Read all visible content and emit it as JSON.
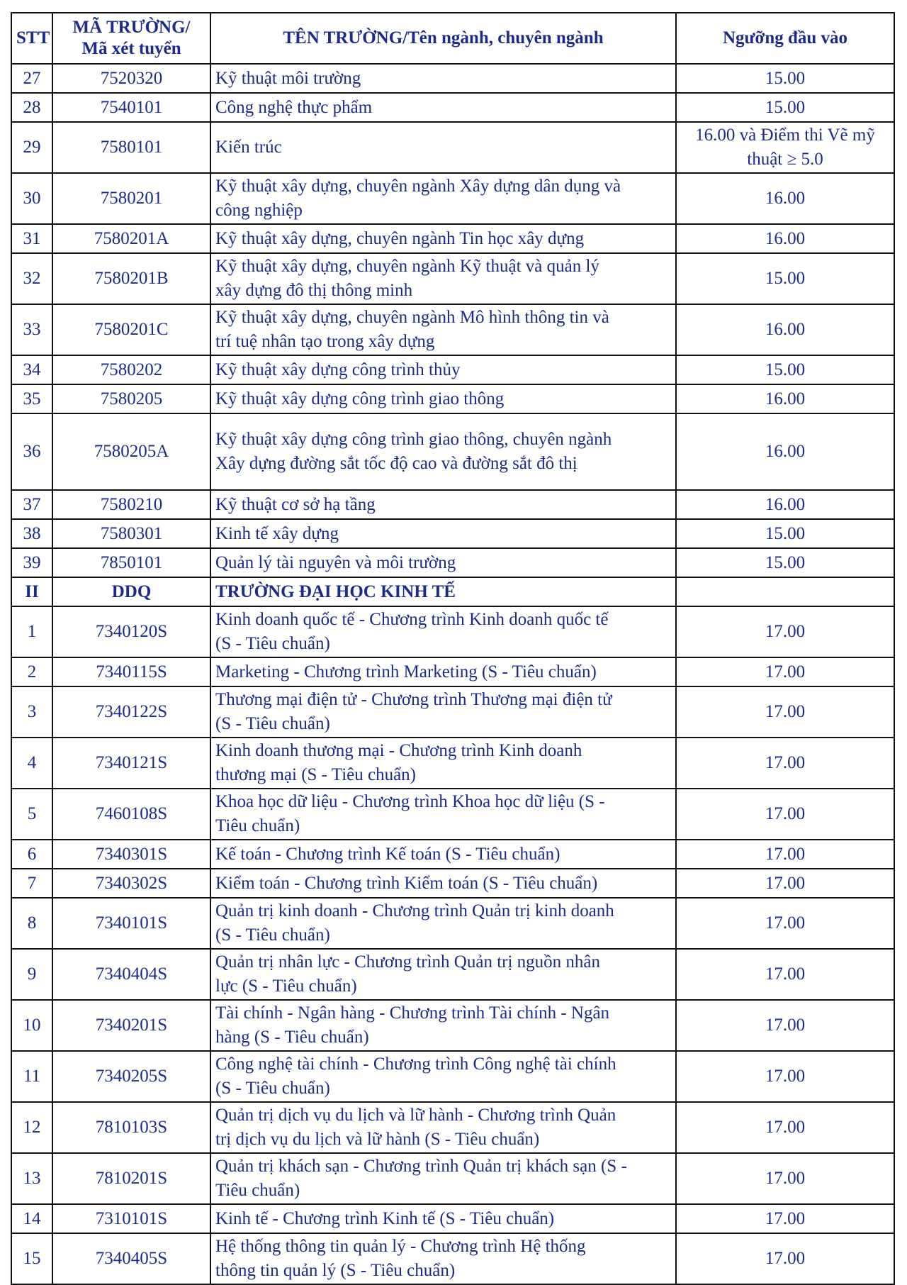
{
  "table": {
    "headers": [
      "STT",
      "MÃ TRƯỜNG/\nMã xét tuyển",
      "TÊN TRƯỜNG/Tên ngành, chuyên ngành",
      "Ngưỡng đầu vào"
    ],
    "rows": [
      {
        "stt": "27",
        "code": "7520320",
        "name": "Kỹ thuật môi trường",
        "threshold": "15.00"
      },
      {
        "stt": "28",
        "code": "7540101",
        "name": "Công nghệ thực phẩm",
        "threshold": "15.00"
      },
      {
        "stt": "29",
        "code": "7580101",
        "name": "Kiến trúc",
        "threshold": "16.00 và Điểm thi Vẽ mỹ\nthuật ≥ 5.0"
      },
      {
        "stt": "30",
        "code": "7580201",
        "name": "Kỹ thuật xây dựng, chuyên ngành Xây dựng dân dụng và\ncông nghiệp",
        "threshold": "16.00"
      },
      {
        "stt": "31",
        "code": "7580201A",
        "name": "Kỹ thuật xây dựng, chuyên ngành Tin học xây dựng",
        "threshold": "16.00"
      },
      {
        "stt": "32",
        "code": "7580201B",
        "name": "Kỹ thuật xây dựng, chuyên ngành Kỹ thuật và quản lý\nxây dựng đô thị thông minh",
        "threshold": "15.00"
      },
      {
        "stt": "33",
        "code": "7580201C",
        "name": "Kỹ thuật xây dựng, chuyên ngành Mô hình thông tin và\ntrí tuệ nhân tạo trong xây dựng",
        "threshold": "16.00"
      },
      {
        "stt": "34",
        "code": "7580202",
        "name": "Kỹ thuật xây dựng công trình thủy",
        "threshold": "15.00"
      },
      {
        "stt": "35",
        "code": "7580205",
        "name": "Kỹ thuật xây dựng công trình giao thông",
        "threshold": "16.00"
      },
      {
        "stt": "36",
        "code": "7580205A",
        "name": "Kỹ thuật xây dựng công trình giao thông, chuyên ngành\nXây dựng đường sắt tốc độ cao và đường sắt đô thị",
        "threshold": "16.00",
        "tall": true
      },
      {
        "stt": "37",
        "code": "7580210",
        "name": "Kỹ thuật cơ sở hạ tầng",
        "threshold": "16.00"
      },
      {
        "stt": "38",
        "code": "7580301",
        "name": "Kinh tế xây dựng",
        "threshold": "15.00"
      },
      {
        "stt": "39",
        "code": "7850101",
        "name": "Quản lý tài nguyên và môi trường",
        "threshold": "15.00"
      },
      {
        "stt": "II",
        "code": "DDQ",
        "name": "TRƯỜNG ĐẠI HỌC KINH TẾ",
        "threshold": "",
        "section": true
      },
      {
        "stt": "1",
        "code": "7340120S",
        "name": "Kinh doanh quốc tế - Chương trình Kinh doanh quốc tế\n(S - Tiêu chuẩn)",
        "threshold": "17.00"
      },
      {
        "stt": "2",
        "code": "7340115S",
        "name": "Marketing - Chương trình Marketing (S - Tiêu chuẩn)",
        "threshold": "17.00"
      },
      {
        "stt": "3",
        "code": "7340122S",
        "name": "Thương mại điện tử - Chương trình Thương mại điện tử\n(S - Tiêu chuẩn)",
        "threshold": "17.00"
      },
      {
        "stt": "4",
        "code": "7340121S",
        "name": "Kinh doanh thương mại - Chương trình Kinh doanh\nthương mại (S - Tiêu chuẩn)",
        "threshold": "17.00"
      },
      {
        "stt": "5",
        "code": "7460108S",
        "name": "Khoa học dữ liệu - Chương trình Khoa học dữ liệu (S -\nTiêu chuẩn)",
        "threshold": "17.00"
      },
      {
        "stt": "6",
        "code": "7340301S",
        "name": "Kế toán - Chương trình Kế toán (S - Tiêu chuẩn)",
        "threshold": "17.00"
      },
      {
        "stt": "7",
        "code": "7340302S",
        "name": "Kiểm toán - Chương trình Kiểm toán (S - Tiêu chuẩn)",
        "threshold": "17.00"
      },
      {
        "stt": "8",
        "code": "7340101S",
        "name": "Quản trị kinh doanh - Chương trình Quản trị kinh doanh\n(S - Tiêu chuẩn)",
        "threshold": "17.00"
      },
      {
        "stt": "9",
        "code": "7340404S",
        "name": "Quản trị nhân lực - Chương trình Quản trị nguồn nhân\nlực (S - Tiêu chuẩn)",
        "threshold": "17.00"
      },
      {
        "stt": "10",
        "code": "7340201S",
        "name": "Tài chính - Ngân hàng - Chương trình Tài chính - Ngân\nhàng (S - Tiêu chuẩn)",
        "threshold": "17.00"
      },
      {
        "stt": "11",
        "code": "7340205S",
        "name": "Công nghệ tài chính - Chương trình Công nghệ tài chính\n(S - Tiêu chuẩn)",
        "threshold": "17.00"
      },
      {
        "stt": "12",
        "code": "7810103S",
        "name": "Quản trị dịch vụ du lịch và lữ hành - Chương trình Quản\ntrị dịch vụ du lịch và lữ hành (S - Tiêu chuẩn)",
        "threshold": "17.00"
      },
      {
        "stt": "13",
        "code": "7810201S",
        "name": "Quản trị khách sạn - Chương trình Quản trị khách sạn (S -\n Tiêu chuẩn)",
        "threshold": "17.00"
      },
      {
        "stt": "14",
        "code": "7310101S",
        "name": "Kinh tế - Chương trình Kinh tế (S - Tiêu chuẩn)",
        "threshold": "17.00"
      },
      {
        "stt": "15",
        "code": "7340405S",
        "name": "Hệ thống thông tin quản lý - Chương trình Hệ thống\nthông tin quản lý (S - Tiêu chuẩn)",
        "threshold": "17.00"
      }
    ]
  },
  "colors": {
    "text": "#1b2b8c",
    "border": "#111111"
  }
}
